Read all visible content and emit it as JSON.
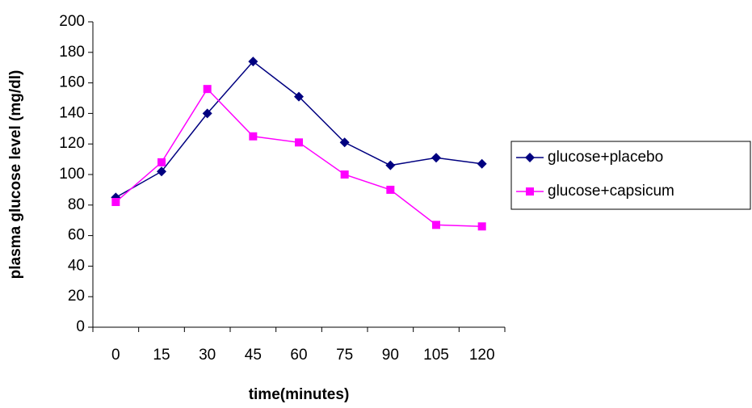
{
  "chart_data": {
    "type": "line",
    "x_label": "time(minutes)",
    "y_label": "plasma glucose level (mg/dl)",
    "categories": [
      "0",
      "15",
      "30",
      "45",
      "60",
      "75",
      "90",
      "105",
      "120"
    ],
    "series": [
      {
        "name": "glucose+placebo",
        "color": "#000080",
        "marker": "diamond",
        "values": [
          85,
          102,
          140,
          174,
          151,
          121,
          106,
          111,
          107
        ]
      },
      {
        "name": "glucose+capsicum",
        "color": "#ff00ff",
        "marker": "square",
        "values": [
          82,
          108,
          156,
          125,
          121,
          100,
          90,
          67,
          66
        ]
      }
    ],
    "ylim": [
      0,
      200
    ],
    "yticks": [
      0,
      20,
      40,
      60,
      80,
      100,
      120,
      140,
      160,
      180,
      200
    ],
    "grid": false,
    "legend": "right"
  }
}
